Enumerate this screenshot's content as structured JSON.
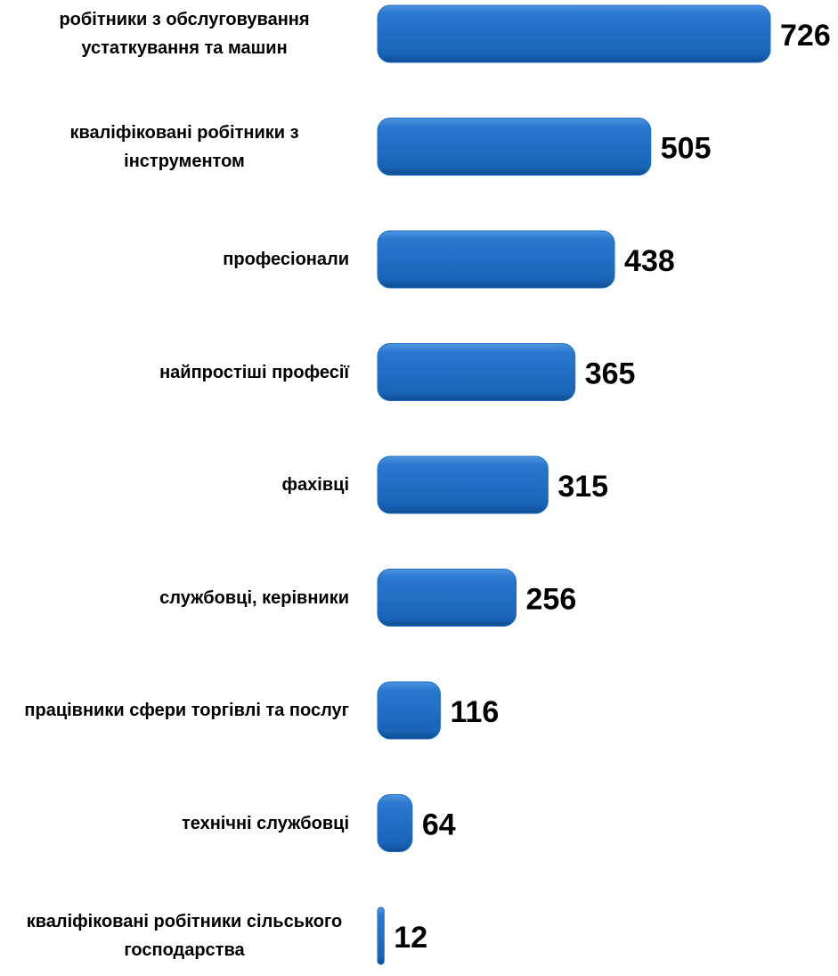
{
  "chart_data": {
    "type": "bar",
    "orientation": "horizontal",
    "categories": [
      "робітники з обслуговування устаткування та машин",
      "кваліфіковані робітники з інструментом",
      "професіонали",
      "найпростіші професії",
      "фахівці",
      "службовці, керівники",
      "працівники сфери торгівлі та послуг",
      "технічні службовці",
      "кваліфіковані робітники сільського господарства"
    ],
    "values": [
      726,
      505,
      438,
      365,
      315,
      256,
      116,
      64,
      12
    ],
    "color": "#1f6fc8"
  }
}
